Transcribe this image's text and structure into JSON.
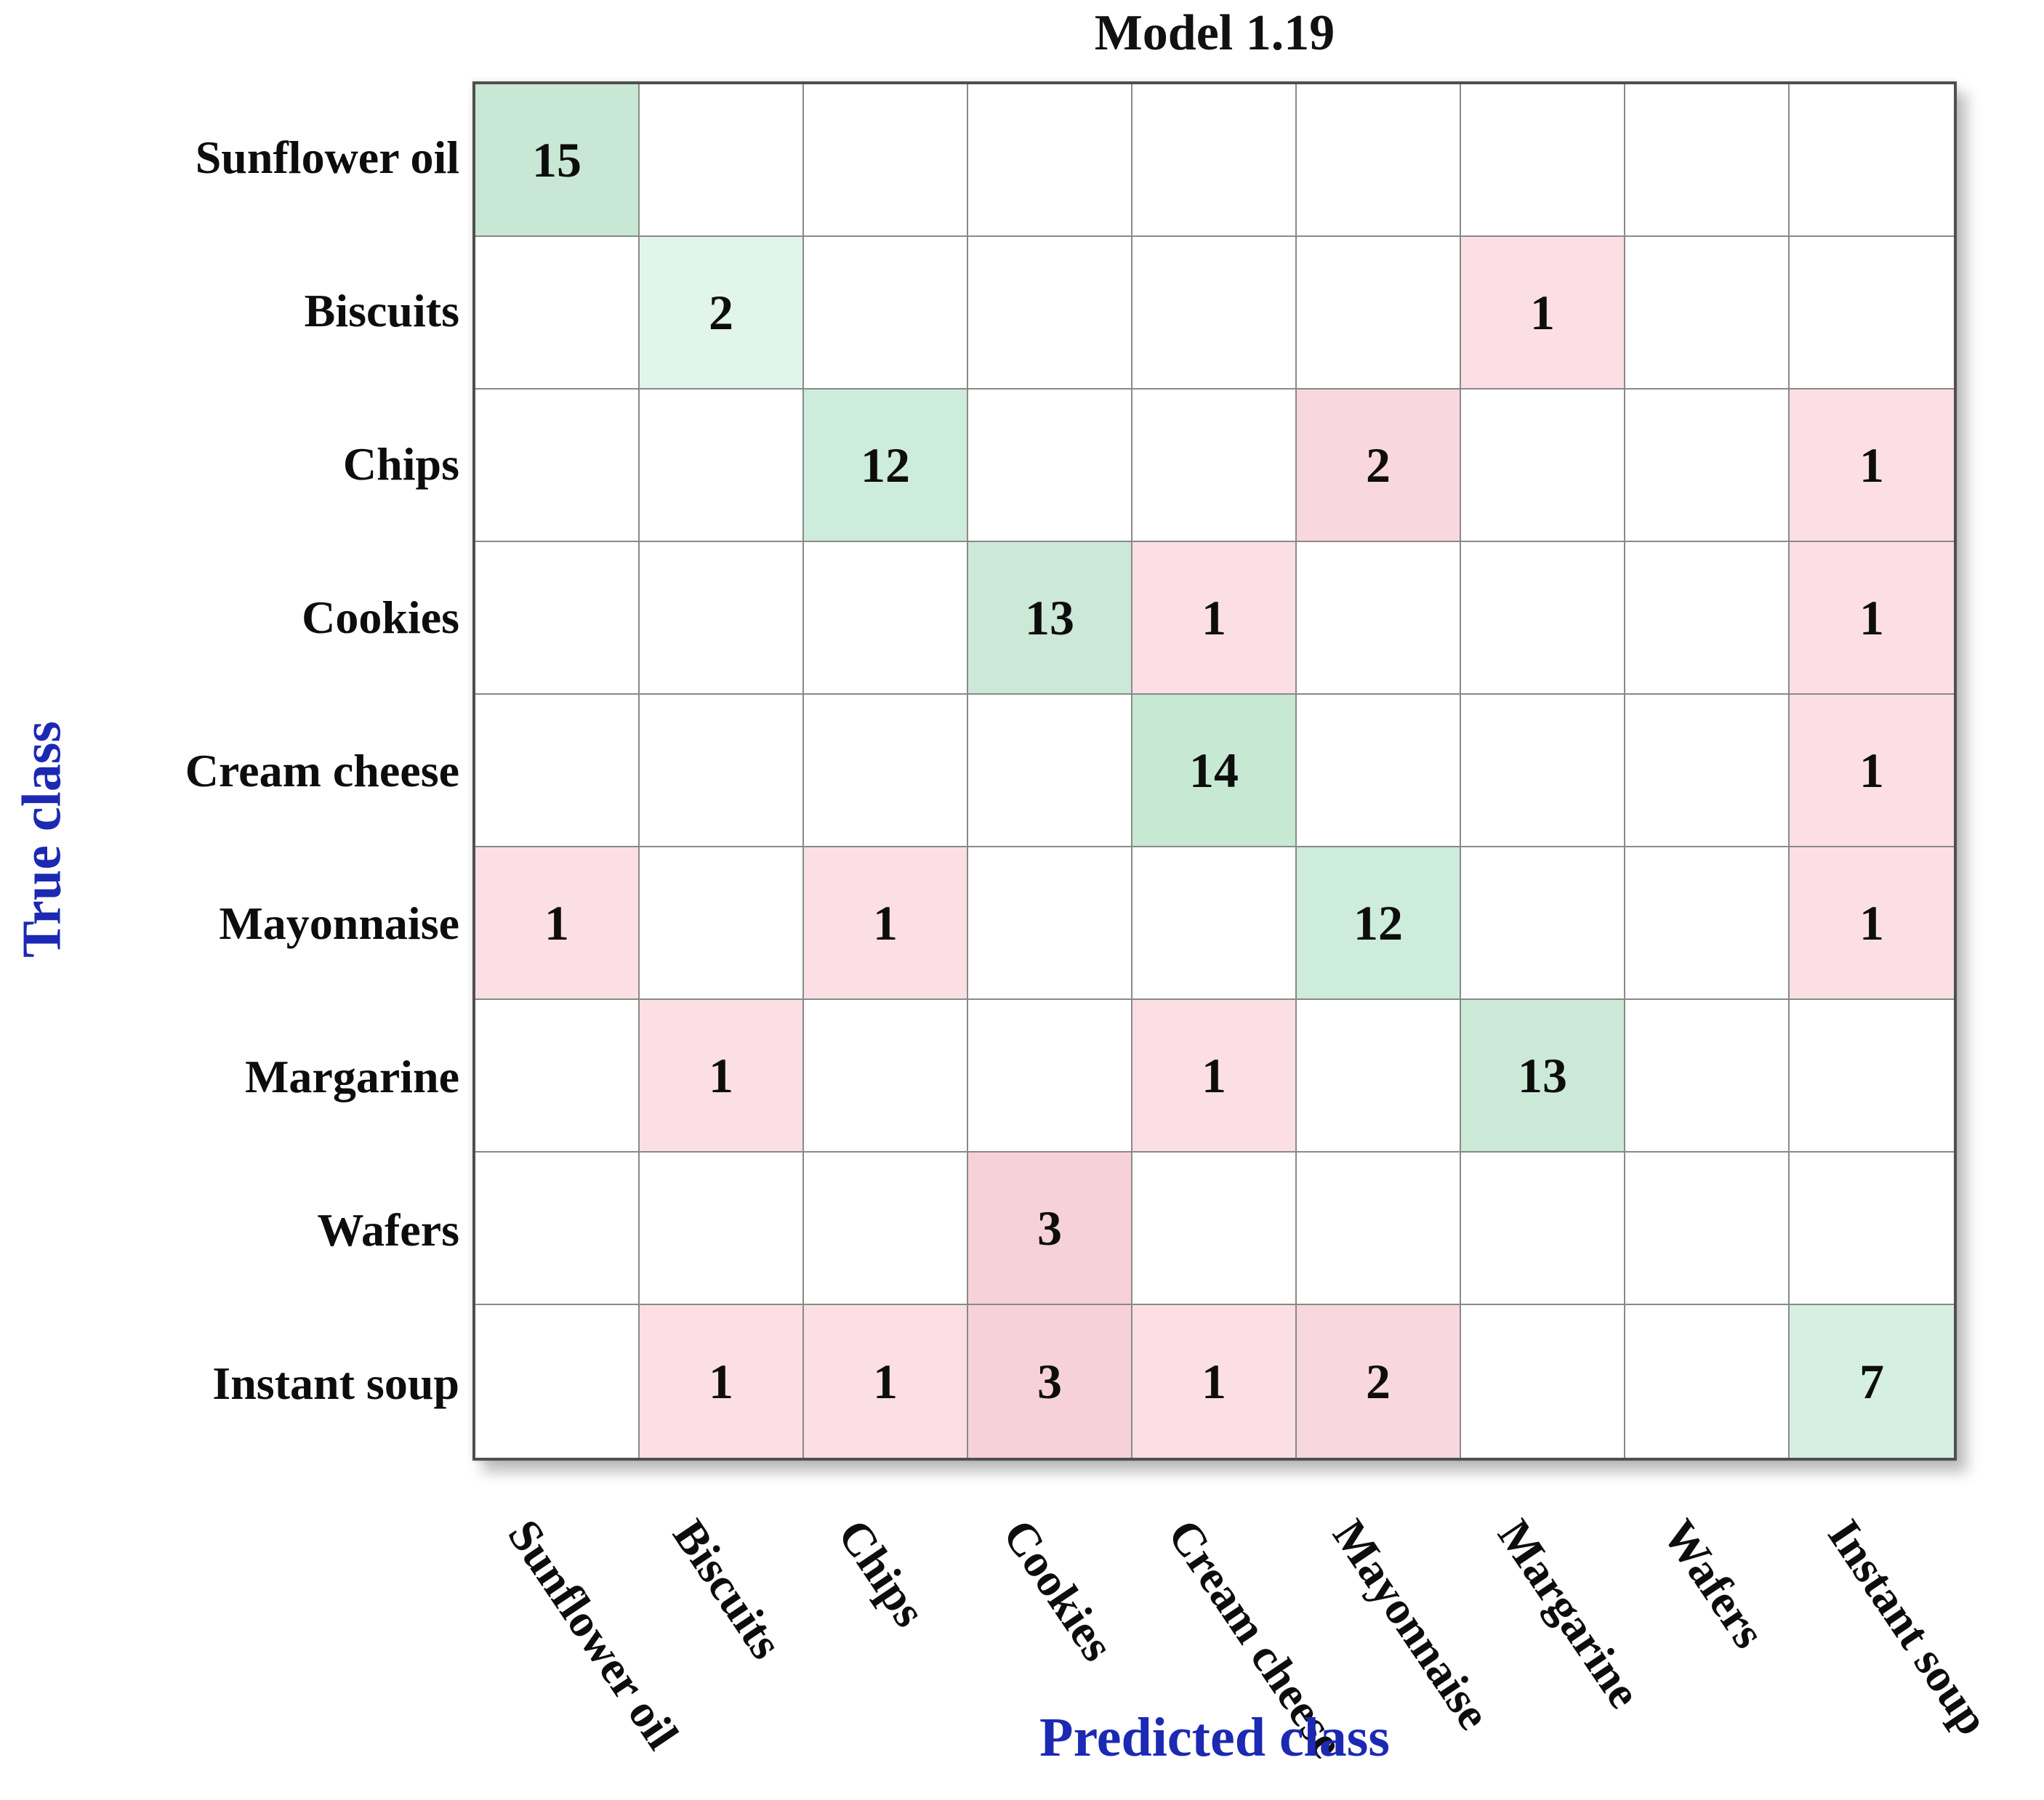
{
  "figure": {
    "title": "Model 1.19",
    "x_axis_title": "Predicted class",
    "y_axis_title": "True class",
    "axis_title_color": "#1b29b3",
    "grid_line_color": "#898989",
    "border_color": "#4f4f4f",
    "diagonal_color_name": "green",
    "offdiagonal_color_name": "pink"
  },
  "chart_data": {
    "type": "heatmap",
    "title": "Model 1.19",
    "xlabel": "Predicted class",
    "ylabel": "True class",
    "legend": "none",
    "grid": true,
    "categories": [
      "Sunflower oil",
      "Biscuits",
      "Chips",
      "Cookies",
      "Cream cheese",
      "Mayonnaise",
      "Margarine",
      "Wafers",
      "Instant soup"
    ],
    "rows": [
      {
        "true_class": "Sunflower oil",
        "values": [
          15,
          null,
          null,
          null,
          null,
          null,
          null,
          null,
          null
        ]
      },
      {
        "true_class": "Biscuits",
        "values": [
          null,
          2,
          null,
          null,
          null,
          null,
          1,
          null,
          null
        ]
      },
      {
        "true_class": "Chips",
        "values": [
          null,
          null,
          12,
          null,
          null,
          2,
          null,
          null,
          1
        ]
      },
      {
        "true_class": "Cookies",
        "values": [
          null,
          null,
          null,
          13,
          1,
          null,
          null,
          null,
          1
        ]
      },
      {
        "true_class": "Cream cheese",
        "values": [
          null,
          null,
          null,
          null,
          14,
          null,
          null,
          null,
          1
        ]
      },
      {
        "true_class": "Mayonnaise",
        "values": [
          1,
          null,
          1,
          null,
          null,
          12,
          null,
          null,
          1
        ]
      },
      {
        "true_class": "Margarine",
        "values": [
          null,
          1,
          null,
          null,
          1,
          null,
          13,
          null,
          null
        ]
      },
      {
        "true_class": "Wafers",
        "values": [
          null,
          null,
          null,
          3,
          null,
          null,
          null,
          null,
          null
        ]
      },
      {
        "true_class": "Instant soup",
        "values": [
          null,
          1,
          1,
          3,
          1,
          2,
          null,
          null,
          7
        ]
      }
    ],
    "cells": [
      {
        "row": 0,
        "col": 0,
        "value": 15,
        "color": "#c8e7d4"
      },
      {
        "row": 1,
        "col": 1,
        "value": 2,
        "color": "#e2f5eb"
      },
      {
        "row": 1,
        "col": 6,
        "value": 1,
        "color": "#fbdfe4"
      },
      {
        "row": 2,
        "col": 2,
        "value": 12,
        "color": "#cdecdb"
      },
      {
        "row": 2,
        "col": 5,
        "value": 2,
        "color": "#f9d7de"
      },
      {
        "row": 2,
        "col": 8,
        "value": 1,
        "color": "#fbdfe4"
      },
      {
        "row": 3,
        "col": 3,
        "value": 13,
        "color": "#cbe9d6"
      },
      {
        "row": 3,
        "col": 4,
        "value": 1,
        "color": "#fbdfe4"
      },
      {
        "row": 3,
        "col": 8,
        "value": 1,
        "color": "#fbdfe4"
      },
      {
        "row": 4,
        "col": 4,
        "value": 14,
        "color": "#c7e8d3"
      },
      {
        "row": 4,
        "col": 8,
        "value": 1,
        "color": "#fbdfe4"
      },
      {
        "row": 5,
        "col": 0,
        "value": 1,
        "color": "#fbdfe4"
      },
      {
        "row": 5,
        "col": 2,
        "value": 1,
        "color": "#fbdfe4"
      },
      {
        "row": 5,
        "col": 5,
        "value": 12,
        "color": "#cdecdb"
      },
      {
        "row": 5,
        "col": 8,
        "value": 1,
        "color": "#fbdfe4"
      },
      {
        "row": 6,
        "col": 1,
        "value": 1,
        "color": "#fbdfe4"
      },
      {
        "row": 6,
        "col": 4,
        "value": 1,
        "color": "#fbdfe4"
      },
      {
        "row": 6,
        "col": 6,
        "value": 13,
        "color": "#cbe9d6"
      },
      {
        "row": 7,
        "col": 3,
        "value": 3,
        "color": "#f7d1d9"
      },
      {
        "row": 8,
        "col": 1,
        "value": 1,
        "color": "#fbdfe4"
      },
      {
        "row": 8,
        "col": 2,
        "value": 1,
        "color": "#fbdfe4"
      },
      {
        "row": 8,
        "col": 3,
        "value": 3,
        "color": "#f7d1d9"
      },
      {
        "row": 8,
        "col": 4,
        "value": 1,
        "color": "#fbdfe4"
      },
      {
        "row": 8,
        "col": 5,
        "value": 2,
        "color": "#f9d7de"
      },
      {
        "row": 8,
        "col": 8,
        "value": 7,
        "color": "#d5f0e3"
      }
    ]
  }
}
